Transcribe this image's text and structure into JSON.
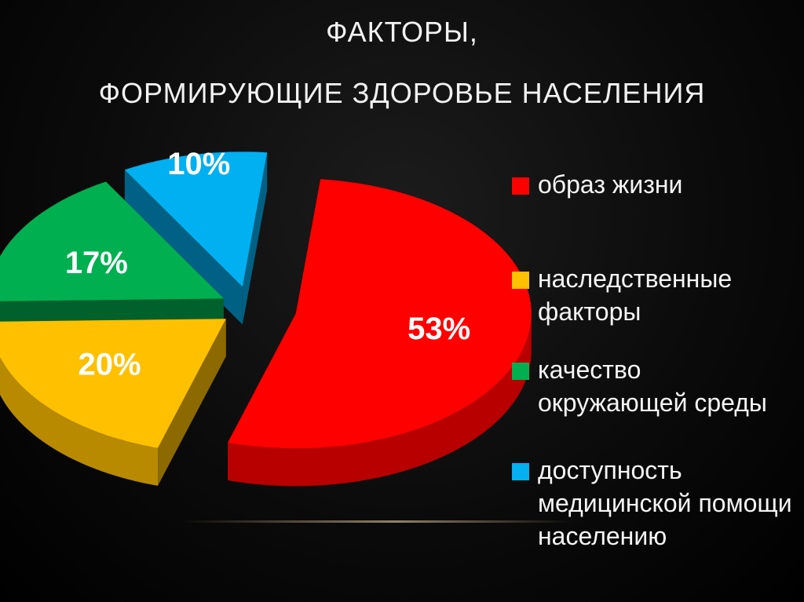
{
  "slide": {
    "title_line1": "ФАКТОРЫ,",
    "title_line2": "ФОРМИРУЮЩИЕ ЗДОРОВЬЕ НАСЕЛЕНИЯ"
  },
  "chart_data": {
    "type": "pie",
    "style": "3d-exploded",
    "categories": [
      "образ жизни",
      "наследственные факторы",
      "качество окружающей среды",
      "доступность медицинской помощи населению"
    ],
    "values": [
      53,
      20,
      17,
      10
    ],
    "value_labels": [
      "53%",
      "20%",
      "17%",
      "10%"
    ],
    "colors": [
      "#ff0000",
      "#ffc000",
      "#00b050",
      "#00b0f0"
    ],
    "legend_position": "right"
  },
  "legend": [
    {
      "label": "образ жизни",
      "color": "#ff0000"
    },
    {
      "label": "наследственные\nфакторы",
      "color": "#ffc000"
    },
    {
      "label": "качество\nокружающей среды",
      "color": "#00b050"
    },
    {
      "label": "доступность\nмедицинской помощи\nнаселению",
      "color": "#00b0f0"
    }
  ]
}
